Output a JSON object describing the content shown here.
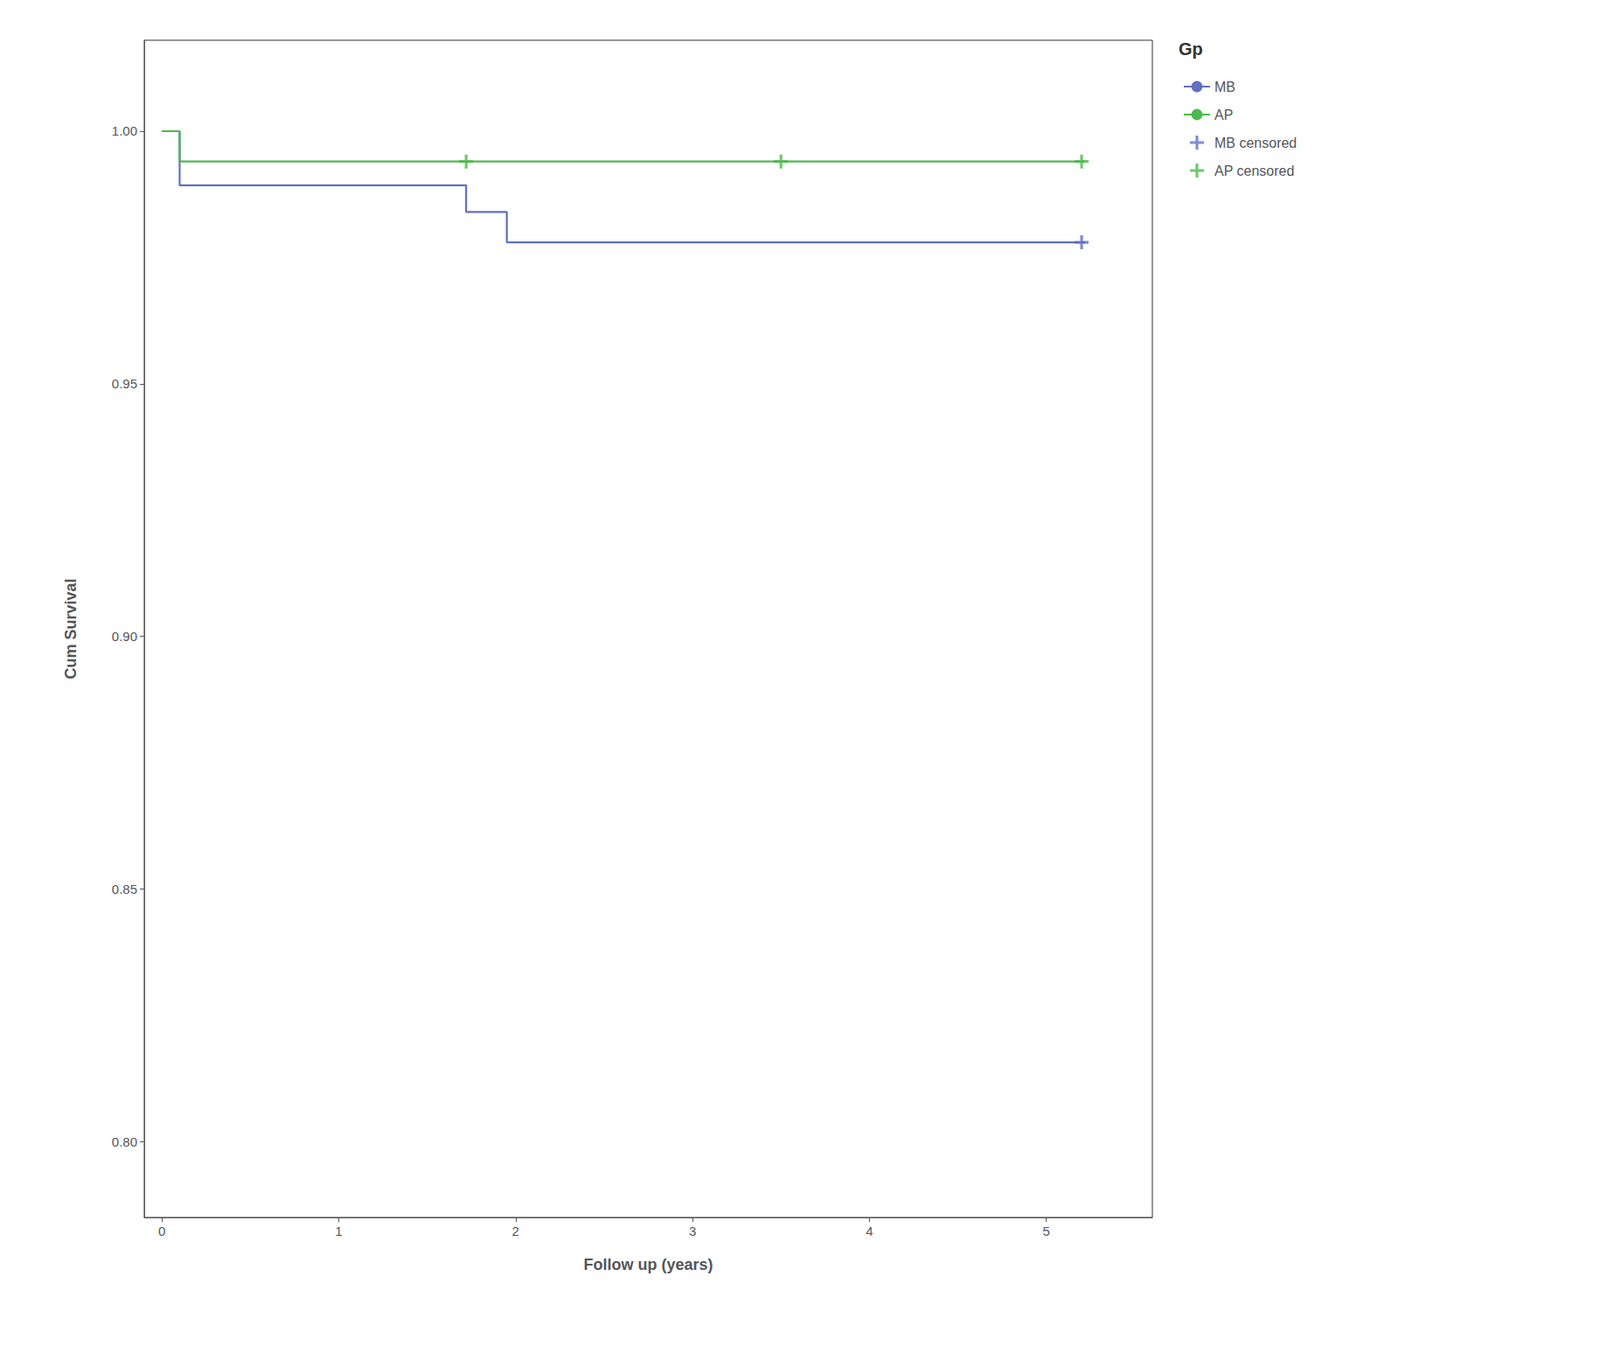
{
  "chart_data": {
    "type": "line",
    "xlabel": "Follow up (years)",
    "ylabel": "Cum Survival",
    "legend_title": "Gp",
    "xlim": [
      -0.1,
      5.6
    ],
    "ylim": [
      0.785,
      1.018
    ],
    "xticks": [
      0,
      1,
      2,
      3,
      4,
      5
    ],
    "yticks": [
      {
        "value": 0.8,
        "label": "0.80"
      },
      0.85,
      {
        "value": 0.9,
        "label": "0.90"
      },
      0.95,
      {
        "value": 1.0,
        "label": "1.00"
      }
    ],
    "grid": false,
    "legend": "right",
    "series": [
      {
        "name": "MB",
        "type": "line",
        "color": "#6070c0",
        "x": [
          0.0,
          0.1,
          0.1,
          1.72,
          1.72,
          1.95,
          1.95,
          5.22
        ],
        "values": [
          1.0,
          1.0,
          0.9893,
          0.9893,
          0.984,
          0.984,
          0.978,
          0.978
        ]
      },
      {
        "name": "AP",
        "type": "line",
        "color": "#4db84d",
        "x": [
          0.0,
          0.1,
          0.1,
          5.22
        ],
        "values": [
          1.0,
          1.0,
          0.994,
          0.994
        ]
      },
      {
        "name": "MB censored",
        "type": "scatter",
        "marker": "plus",
        "color": "#6070c0",
        "x": [
          5.2
        ],
        "values": [
          0.978
        ]
      },
      {
        "name": "AP censored",
        "type": "scatter",
        "marker": "plus",
        "color": "#4db84d",
        "x": [
          1.72,
          3.5,
          5.2
        ],
        "values": [
          0.994,
          0.994,
          0.994
        ]
      }
    ]
  }
}
